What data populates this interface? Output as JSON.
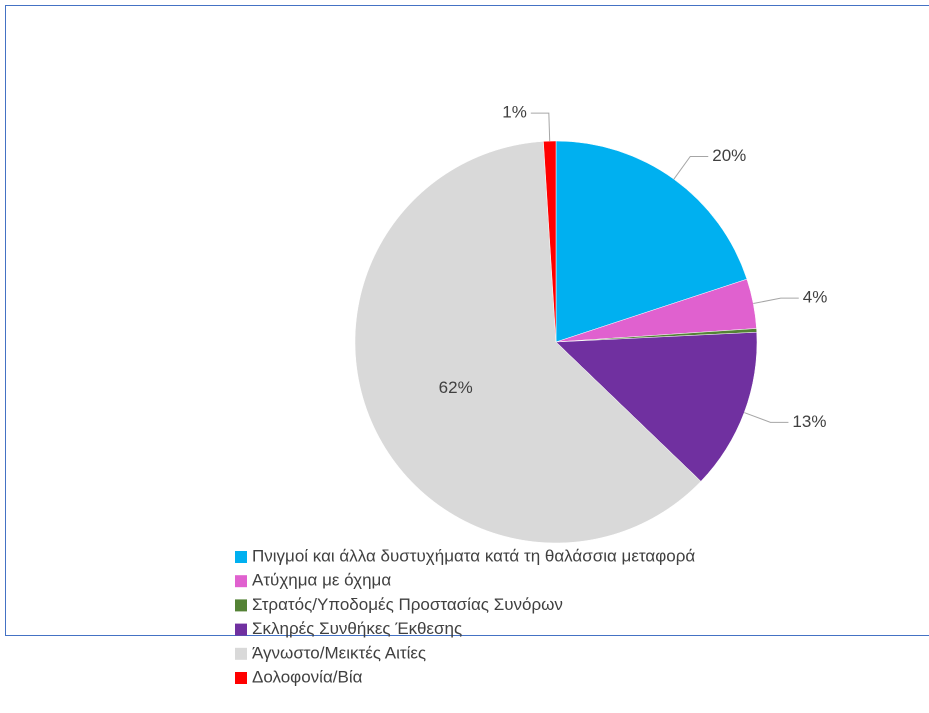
{
  "chart_data": {
    "type": "pie",
    "categories": [
      "Πνιγμοί και άλλα δυστυχήματα κατά τη θαλάσσια μεταφορά",
      "Ατύχημα με όχημα",
      "Στρατός/Υποδομές Προστασίας Συνόρων",
      "Σκληρές Συνθήκες Έκθεσης",
      "Άγνωστο/Μεικτές Αιτίες",
      "Δολοφονία/Βία"
    ],
    "values": [
      20,
      4,
      0.3,
      13,
      62,
      1
    ],
    "value_labels": [
      "20%",
      "4%",
      null,
      "13%",
      "62%",
      "1%"
    ],
    "colors": [
      "#00b0f0",
      "#e061cf",
      "#548235",
      "#7030a0",
      "#d9d9d9",
      "#ff0000"
    ],
    "legend": "bottom"
  }
}
